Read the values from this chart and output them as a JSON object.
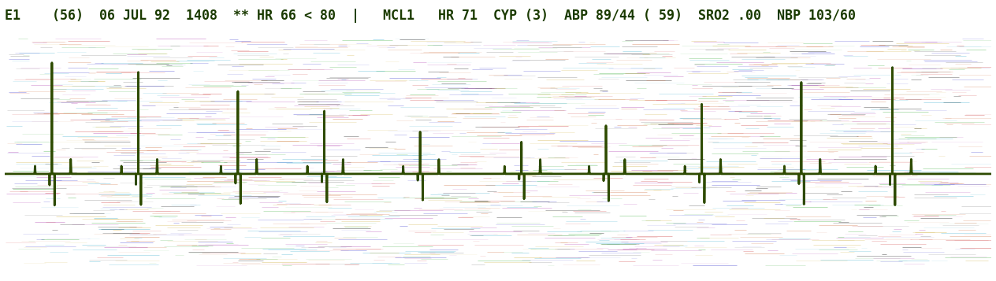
{
  "header_text": "E1    (56)  06 JUL 92  1408  ** HR 66 < 80  |   MCL1   HR 71  CYP (3)  ABP 89/44 ( 59)  SRO2 .00  NBP 103/60",
  "header_color": "#1a3a00",
  "header_fontsize": 12,
  "bg_color": "#ffffff",
  "ecg_color": "#2d4a00",
  "ecg_linewidth": 2.0,
  "noise_colors": [
    "#cc3333",
    "#3333cc",
    "#33aa33",
    "#ccaa33",
    "#aa33aa",
    "#33aacc",
    "#cc6633",
    "#000000"
  ],
  "fig_width": 12.64,
  "fig_height": 3.57,
  "dpi": 100
}
